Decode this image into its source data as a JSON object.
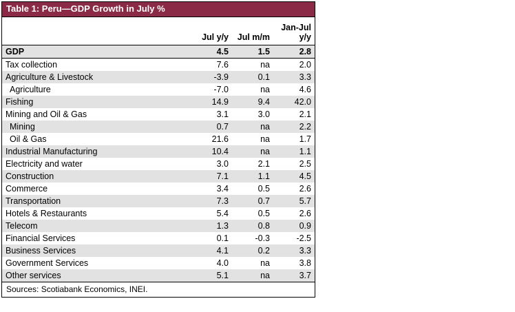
{
  "chart_data": {
    "type": "table",
    "title": "Table 1: Peru—GDP Growth in July %",
    "columns": [
      "",
      "Jul y/y",
      "Jul m/m",
      "Jan-Jul y/y"
    ],
    "rows": [
      {
        "label": "GDP",
        "values": [
          "4.5",
          "1.5",
          "2.8"
        ],
        "bold": true,
        "indent": false
      },
      {
        "label": "Tax collection",
        "values": [
          "7.6",
          "na",
          "2.0"
        ],
        "bold": false,
        "indent": false
      },
      {
        "label": "Agriculture & Livestock",
        "values": [
          "-3.9",
          "0.1",
          "3.3"
        ],
        "bold": false,
        "indent": false
      },
      {
        "label": "Agriculture",
        "values": [
          "-7.0",
          "na",
          "4.6"
        ],
        "bold": false,
        "indent": true
      },
      {
        "label": "Fishing",
        "values": [
          "14.9",
          "9.4",
          "42.0"
        ],
        "bold": false,
        "indent": false
      },
      {
        "label": "Mining and Oil & Gas",
        "values": [
          "3.1",
          "3.0",
          "2.1"
        ],
        "bold": false,
        "indent": false
      },
      {
        "label": "Mining",
        "values": [
          "0.7",
          "na",
          "2.2"
        ],
        "bold": false,
        "indent": true
      },
      {
        "label": "Oil & Gas",
        "values": [
          "21.6",
          "na",
          "1.7"
        ],
        "bold": false,
        "indent": true
      },
      {
        "label": "Industrial Manufacturing",
        "values": [
          "10.4",
          "na",
          "1.1"
        ],
        "bold": false,
        "indent": false
      },
      {
        "label": "Electricity and water",
        "values": [
          "3.0",
          "2.1",
          "2.5"
        ],
        "bold": false,
        "indent": false
      },
      {
        "label": "Construction",
        "values": [
          "7.1",
          "1.1",
          "4.5"
        ],
        "bold": false,
        "indent": false
      },
      {
        "label": "Commerce",
        "values": [
          "3.4",
          "0.5",
          "2.6"
        ],
        "bold": false,
        "indent": false
      },
      {
        "label": "Transportation",
        "values": [
          "7.3",
          "0.7",
          "5.7"
        ],
        "bold": false,
        "indent": false
      },
      {
        "label": "Hotels & Restaurants",
        "values": [
          "5.4",
          "0.5",
          "2.6"
        ],
        "bold": false,
        "indent": false
      },
      {
        "label": "Telecom",
        "values": [
          "1.3",
          "0.8",
          "0.9"
        ],
        "bold": false,
        "indent": false
      },
      {
        "label": "Financial Services",
        "values": [
          "0.1",
          "-0.3",
          "-2.5"
        ],
        "bold": false,
        "indent": false
      },
      {
        "label": "Business Services",
        "values": [
          "4.1",
          "0.2",
          "3.3"
        ],
        "bold": false,
        "indent": false
      },
      {
        "label": "Government Services",
        "values": [
          "4.0",
          "na",
          "3.8"
        ],
        "bold": false,
        "indent": false
      },
      {
        "label": "Other services",
        "values": [
          "5.1",
          "na",
          "3.7"
        ],
        "bold": false,
        "indent": false
      }
    ]
  },
  "footer": {
    "sources": "Sources: Scotiabank Economics, INEI."
  },
  "colors": {
    "title_bg": "#8a2a46",
    "title_fg": "#ffffff",
    "row_alt_bg": "#e2e2e2",
    "border": "#000000"
  }
}
